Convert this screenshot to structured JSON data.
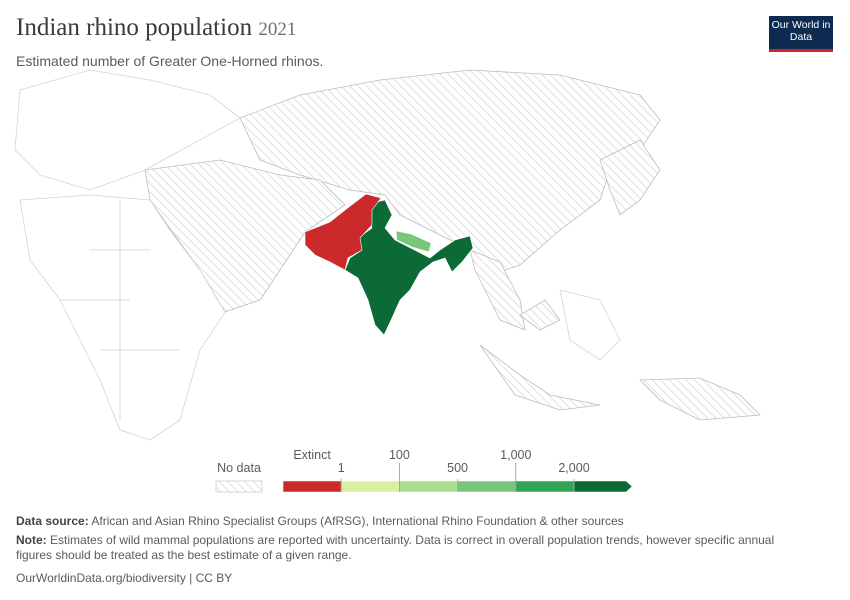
{
  "header": {
    "title": "Indian rhino population",
    "year": "2021",
    "subtitle": "Estimated number of Greater One-Horned rhinos.",
    "logo": "Our World in Data"
  },
  "chart_data": {
    "type": "map",
    "legend": {
      "no_data_label": "No data",
      "ticks": [
        {
          "value": 0,
          "label": "Extinct"
        },
        1,
        100,
        500,
        {
          "value": 1000,
          "label": "1,000"
        },
        {
          "value": 2000,
          "label": "2,000"
        }
      ],
      "colors": [
        "#cc2a2a",
        "#d9f0a3",
        "#addd8e",
        "#78c679",
        "#31a354",
        "#0b6a36"
      ]
    },
    "regions": [
      {
        "value": 3262
      },
      {
        "value": 752
      },
      {
        "value": 0
      }
    ]
  },
  "footer": {
    "source_label": "Data source:",
    "source": "African and Asian Rhino Specialist Groups (AfRSG), International Rhino Foundation & other sources",
    "note_label": "Note:",
    "note": "Estimates of wild mammal populations are reported with uncertainty. Data is correct in overall population trends, however specific annual figures should be treated as the best estimate of a given range.",
    "url": "OurWorldinData.org/biodiversity | CC BY"
  }
}
